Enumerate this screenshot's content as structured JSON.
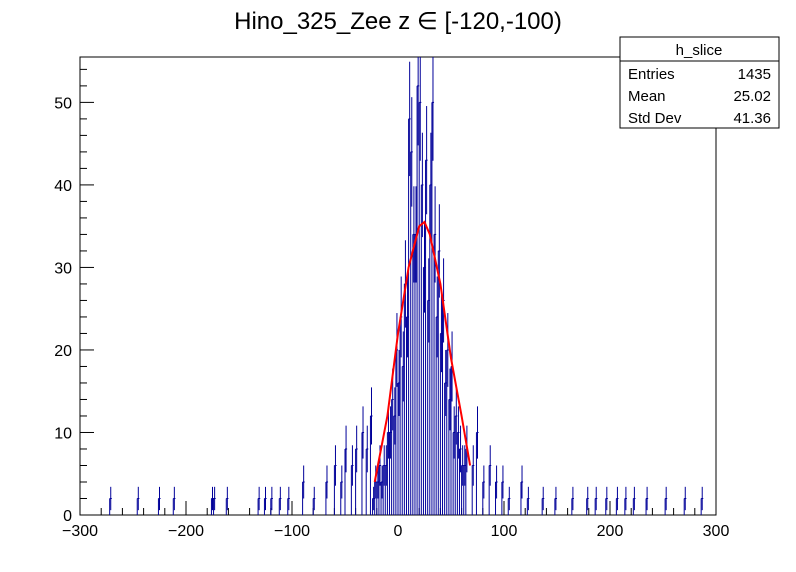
{
  "chart_data": {
    "type": "histogram",
    "title": "Hino_325_Zee z  ∈ [-120,-100)",
    "xlabel": "",
    "ylabel": "",
    "xlim": [
      -300,
      300
    ],
    "ylim": [
      0,
      55.5
    ],
    "x_ticks": [
      "−300",
      "−200",
      "−100",
      "0",
      "100",
      "200",
      "300"
    ],
    "x_tick_values": [
      -300,
      -200,
      -100,
      0,
      100,
      200,
      300
    ],
    "y_ticks": [
      "0",
      "10",
      "20",
      "30",
      "40",
      "50"
    ],
    "y_tick_values": [
      0,
      10,
      20,
      30,
      40,
      50
    ],
    "grid": false,
    "histogram_color": "#000099",
    "fit_color": "#ff0000",
    "stats_box": {
      "name": "h_slice",
      "rows": [
        {
          "label": "Entries",
          "value": "1435"
        },
        {
          "label": "Mean",
          "value": "25.02"
        },
        {
          "label": "Std Dev",
          "value": "41.36"
        }
      ]
    },
    "histogram_bins": {
      "bin_width": 2,
      "x_min": -300,
      "sparse_bins_x": [
        -272,
        -246,
        -226,
        -212,
        -176,
        -174,
        -162,
        -132,
        -126,
        -120,
        -112,
        -104,
        -90,
        -80,
        -68,
        -60,
        -54,
        -50,
        -44,
        -40,
        -34,
        -30,
        -26,
        64,
        70,
        74,
        80,
        86,
        92,
        98,
        104,
        116,
        122,
        136,
        148,
        164,
        178,
        186,
        196,
        206,
        214,
        222,
        234,
        252,
        270,
        286
      ],
      "sparse_bins_count": [
        2,
        2,
        2,
        2,
        2,
        2,
        2,
        2,
        2,
        2,
        2,
        2,
        4,
        2,
        4,
        6,
        4,
        8,
        6,
        8,
        10,
        8,
        12,
        8,
        6,
        10,
        4,
        6,
        4,
        4,
        2,
        4,
        2,
        2,
        2,
        2,
        2,
        2,
        2,
        2,
        2,
        2,
        2,
        2,
        2,
        2
      ]
    },
    "fit": {
      "shape": "gaussian",
      "x": [
        -22,
        -10,
        0,
        10,
        20,
        25,
        30,
        40,
        50,
        60,
        68
      ],
      "y": [
        4,
        12,
        22,
        30,
        35,
        35.5,
        34,
        28,
        19,
        12,
        6
      ]
    }
  }
}
